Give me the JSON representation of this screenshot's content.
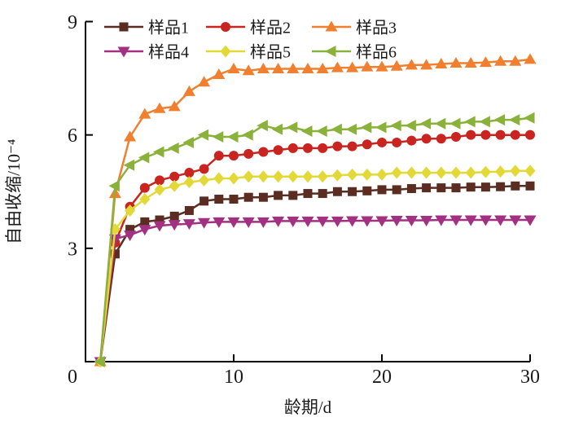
{
  "chart_data": {
    "type": "line",
    "title": "",
    "xlabel": "龄期/d",
    "ylabel": "自由收缩/10⁻⁴",
    "xlim": [
      0,
      30
    ],
    "ylim": [
      0,
      9
    ],
    "xticks": [
      0,
      10,
      20,
      30
    ],
    "yticks": [
      0,
      3,
      6,
      9
    ],
    "origin_label": "0",
    "grid": false,
    "legend_position": "top-inside-two-rows",
    "x": [
      1,
      2,
      3,
      4,
      5,
      6,
      7,
      8,
      9,
      10,
      11,
      12,
      13,
      14,
      15,
      16,
      17,
      18,
      19,
      20,
      21,
      22,
      23,
      24,
      25,
      26,
      27,
      28,
      29,
      30
    ],
    "series": [
      {
        "name": "样品1",
        "marker": "square",
        "color": "#5a2c22",
        "values": [
          0,
          2.85,
          3.5,
          3.7,
          3.75,
          3.85,
          4.0,
          4.25,
          4.3,
          4.3,
          4.35,
          4.35,
          4.4,
          4.4,
          4.45,
          4.45,
          4.5,
          4.5,
          4.52,
          4.55,
          4.55,
          4.58,
          4.6,
          4.6,
          4.6,
          4.62,
          4.62,
          4.63,
          4.65,
          4.65
        ]
      },
      {
        "name": "样品2",
        "marker": "circle",
        "color": "#c9241f",
        "values": [
          0,
          3.15,
          4.1,
          4.6,
          4.8,
          4.9,
          5.0,
          5.1,
          5.45,
          5.45,
          5.5,
          5.55,
          5.6,
          5.65,
          5.65,
          5.65,
          5.7,
          5.7,
          5.75,
          5.8,
          5.8,
          5.85,
          5.9,
          5.9,
          5.95,
          6.0,
          6.0,
          6.0,
          6.0,
          6.0
        ]
      },
      {
        "name": "样品3",
        "marker": "triangle-up",
        "color": "#f0802f",
        "values": [
          0,
          4.45,
          5.95,
          6.55,
          6.7,
          6.75,
          7.15,
          7.4,
          7.6,
          7.75,
          7.7,
          7.75,
          7.75,
          7.75,
          7.75,
          7.75,
          7.78,
          7.78,
          7.8,
          7.8,
          7.82,
          7.85,
          7.85,
          7.88,
          7.9,
          7.9,
          7.92,
          7.95,
          7.95,
          8.0
        ]
      },
      {
        "name": "样品4",
        "marker": "triangle-down",
        "color": "#a23181",
        "values": [
          0,
          3.25,
          3.35,
          3.5,
          3.6,
          3.63,
          3.65,
          3.68,
          3.7,
          3.7,
          3.7,
          3.7,
          3.72,
          3.72,
          3.72,
          3.72,
          3.72,
          3.73,
          3.73,
          3.73,
          3.74,
          3.74,
          3.74,
          3.75,
          3.75,
          3.75,
          3.75,
          3.75,
          3.75,
          3.75
        ]
      },
      {
        "name": "样品5",
        "marker": "diamond",
        "color": "#e2d936",
        "values": [
          0,
          3.5,
          4.0,
          4.3,
          4.55,
          4.65,
          4.75,
          4.8,
          4.85,
          4.85,
          4.9,
          4.9,
          4.9,
          4.9,
          4.9,
          4.9,
          4.93,
          4.95,
          4.95,
          4.95,
          5.0,
          5.0,
          5.0,
          5.0,
          5.0,
          5.0,
          5.02,
          5.03,
          5.05,
          5.05
        ]
      },
      {
        "name": "样品6",
        "marker": "triangle-left",
        "color": "#8ab23a",
        "values": [
          0,
          4.65,
          5.2,
          5.4,
          5.55,
          5.65,
          5.8,
          6.0,
          5.95,
          5.95,
          6.0,
          6.25,
          6.15,
          6.2,
          6.1,
          6.1,
          6.15,
          6.15,
          6.2,
          6.2,
          6.25,
          6.25,
          6.3,
          6.3,
          6.3,
          6.35,
          6.35,
          6.4,
          6.4,
          6.45
        ]
      }
    ],
    "axis_color": "#000000",
    "text_color": "#1a1a1a"
  }
}
